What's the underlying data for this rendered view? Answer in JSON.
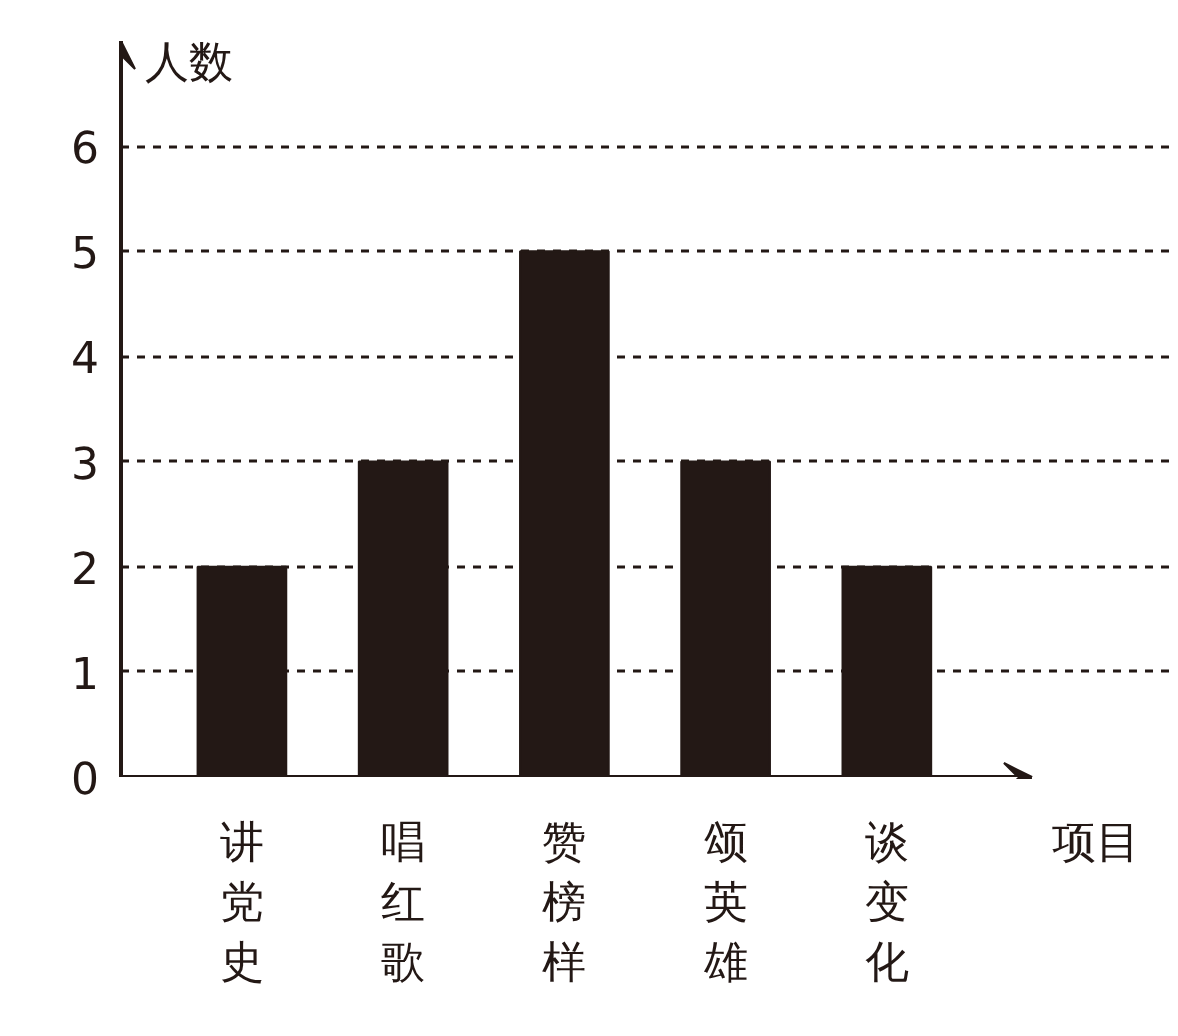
{
  "chart_data": {
    "type": "bar",
    "xlabel": "项目",
    "ylabel": "人数",
    "categories": [
      "讲党史",
      "唱红歌",
      "赞榜样",
      "颂英雄",
      "谈变化"
    ],
    "values": [
      2,
      3,
      5,
      3,
      2
    ],
    "color": "#231815",
    "ylim": [
      0,
      7
    ],
    "yticks": [
      0,
      1,
      2,
      3,
      4,
      5,
      6
    ],
    "grid": "y"
  }
}
